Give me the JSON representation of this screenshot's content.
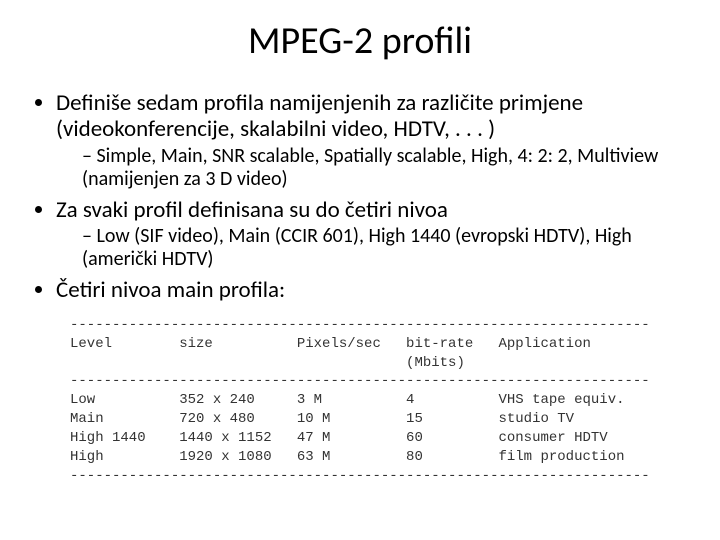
{
  "title": "MPEG-2 profili",
  "bullets": {
    "b1": "Definiše sedam profila namijenjenih za različite primjene (videokonferencije, skalabilni video, HDTV, . . . )",
    "b1_sub": "Simple, Main, SNR scalable, Spatially scalable, High, 4: 2: 2, Multiview (namijenjen za 3 D video)",
    "b2": "Za svaki profil definisana su do četiri nivoa",
    "b2_sub": "Low (SIF video), Main (CCIR 601), High 1440 (evropski HDTV), High (američki HDTV)",
    "b3": "Četiri nivoa main profila:"
  },
  "table": {
    "type": "table",
    "font_family": "Courier New",
    "font_size_pt": 11,
    "text_color": "#333333",
    "background_color": "#ffffff",
    "divider_char": "-",
    "col_widths_ch": [
      13,
      14,
      13,
      11,
      18
    ],
    "columns": [
      "Level",
      "size",
      "Pixels/sec",
      "bit-rate",
      "Application"
    ],
    "subheader": [
      "",
      "",
      "",
      "(Mbits)",
      ""
    ],
    "rows": [
      [
        "Low",
        "352 x 240",
        "3 M",
        "4",
        "VHS tape equiv."
      ],
      [
        "Main",
        "720 x 480",
        "10 M",
        "15",
        "studio TV"
      ],
      [
        "High 1440",
        "1440 x 1152",
        "47 M",
        "60",
        "consumer HDTV"
      ],
      [
        "High",
        "1920 x 1080",
        "63 M",
        "80",
        "film production"
      ]
    ]
  }
}
